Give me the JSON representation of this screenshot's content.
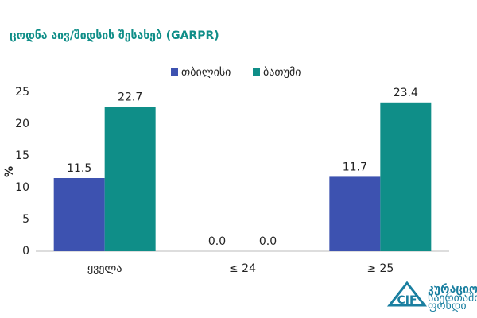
{
  "chart_data": {
    "type": "bar",
    "title": "ცოდნა აივ/შიდსის შესახებ (GARPR)",
    "y_label": "%",
    "categories": [
      "ყველა",
      "≤ 24",
      "≥ 25"
    ],
    "series": [
      {
        "name": "თბილისი",
        "color": "#3d52b0",
        "values": [
          11.5,
          0,
          11.7
        ],
        "value_labels": [
          "11.5",
          "0.0",
          "11.7"
        ]
      },
      {
        "name": "ბათუმი",
        "color": "#0f8e88",
        "values": [
          22.7,
          0,
          23.4
        ],
        "value_labels": [
          "22.7",
          "0.0",
          "23.4"
        ]
      }
    ],
    "ylim": [
      0,
      25
    ],
    "yticks": [
      0,
      5,
      10,
      15,
      20,
      25
    ],
    "grid": false,
    "legend": "top"
  },
  "logo": {
    "mark": "CIF",
    "lines": [
      "კურაციო",
      "საერთაშორისო",
      "ფონდი"
    ]
  }
}
